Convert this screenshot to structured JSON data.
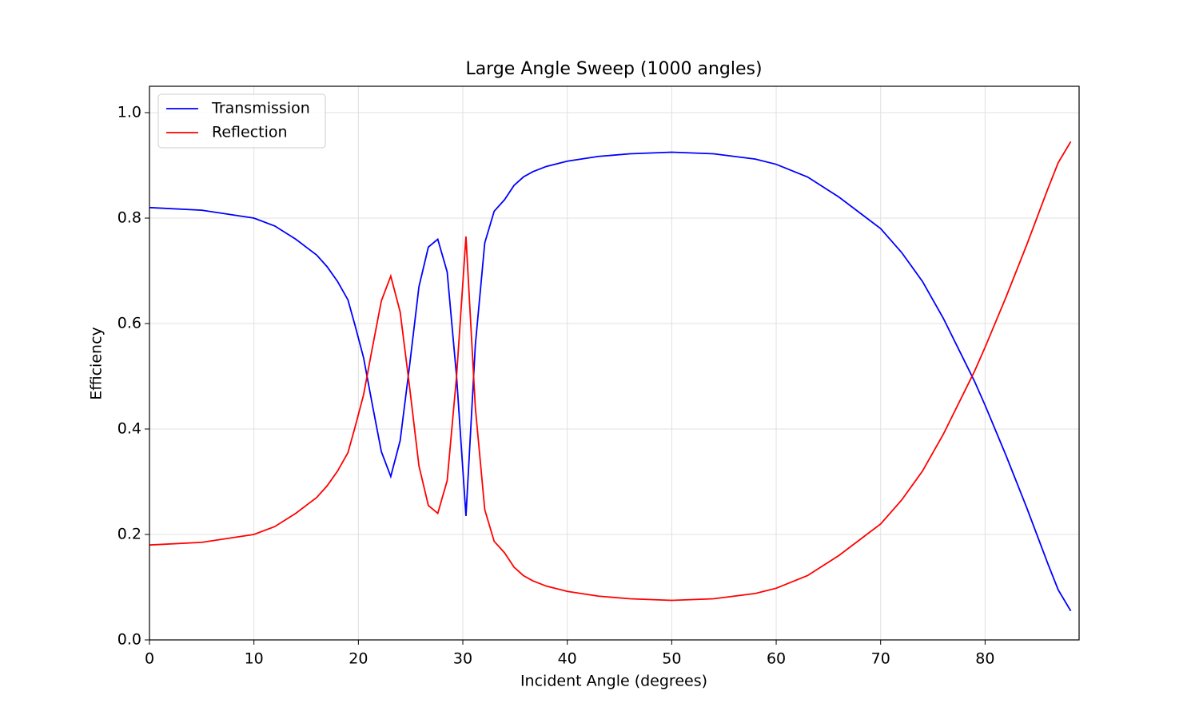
{
  "chart_data": {
    "type": "line",
    "title": "Large Angle Sweep (1000 angles)",
    "x_label": "Incident Angle (degrees)",
    "y_label": "Efficiency",
    "x": [
      0,
      5,
      10,
      12,
      14,
      15,
      16,
      17,
      18,
      19,
      19.7,
      20.5,
      21.3,
      22.2,
      23.1,
      24.0,
      24.9,
      25.8,
      26.7,
      27.6,
      28.5,
      29.4,
      30.3,
      31.2,
      32.1,
      33.0,
      34.0,
      34.9,
      35.8,
      36.7,
      38,
      40,
      43,
      46,
      50,
      54,
      58,
      60,
      63,
      66,
      68,
      70,
      72,
      74,
      76,
      78,
      79,
      80,
      82,
      84,
      86,
      87,
      88.2
    ],
    "series": [
      {
        "name": "Transmission",
        "color": "#0000ff",
        "values": [
          0.82,
          0.815,
          0.8,
          0.785,
          0.76,
          0.745,
          0.73,
          0.708,
          0.68,
          0.645,
          0.595,
          0.535,
          0.45,
          0.357,
          0.31,
          0.378,
          0.52,
          0.67,
          0.745,
          0.76,
          0.698,
          0.5,
          0.235,
          0.56,
          0.753,
          0.813,
          0.835,
          0.862,
          0.878,
          0.888,
          0.898,
          0.908,
          0.917,
          0.922,
          0.925,
          0.922,
          0.912,
          0.902,
          0.878,
          0.84,
          0.81,
          0.78,
          0.735,
          0.68,
          0.61,
          0.53,
          0.49,
          0.445,
          0.35,
          0.25,
          0.145,
          0.095,
          0.055
        ]
      },
      {
        "name": "Reflection",
        "color": "#ff0000",
        "values": [
          0.18,
          0.185,
          0.2,
          0.215,
          0.24,
          0.255,
          0.27,
          0.292,
          0.32,
          0.355,
          0.405,
          0.465,
          0.55,
          0.643,
          0.69,
          0.622,
          0.48,
          0.33,
          0.255,
          0.24,
          0.302,
          0.5,
          0.765,
          0.44,
          0.247,
          0.187,
          0.165,
          0.138,
          0.122,
          0.112,
          0.102,
          0.092,
          0.083,
          0.078,
          0.075,
          0.078,
          0.088,
          0.098,
          0.122,
          0.16,
          0.19,
          0.22,
          0.265,
          0.32,
          0.39,
          0.47,
          0.51,
          0.555,
          0.65,
          0.75,
          0.855,
          0.905,
          0.945
        ]
      }
    ],
    "xlim": [
      0,
      89
    ],
    "ylim": [
      0,
      1.05
    ],
    "xticks": [
      0,
      10,
      20,
      30,
      40,
      50,
      60,
      70,
      80
    ],
    "yticks": [
      {
        "value": 0,
        "label": "0.0"
      },
      {
        "value": 0.2,
        "label": "0.2"
      },
      {
        "value": 0.4,
        "label": "0.4"
      },
      {
        "value": 0.6,
        "label": "0.6"
      },
      {
        "value": 0.8,
        "label": "0.8"
      },
      {
        "value": 1.0,
        "label": "1.0"
      }
    ],
    "grid": true,
    "legend": "upper-left"
  }
}
